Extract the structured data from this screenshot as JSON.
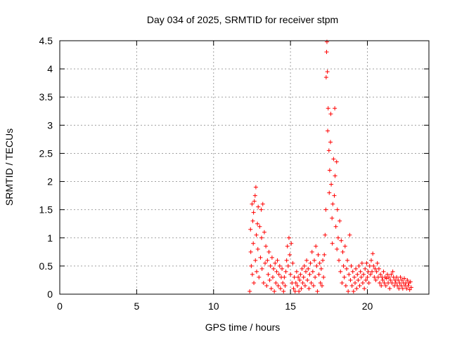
{
  "chart_data": {
    "type": "scatter",
    "title": "Day 034 of 2025, SRMTID for receiver stpm",
    "xlabel": "GPS time / hours",
    "ylabel": "SRMTID / TECUs",
    "xlim": [
      0,
      24
    ],
    "ylim": [
      0,
      4.5
    ],
    "xticks": [
      0,
      5,
      10,
      15,
      20
    ],
    "xtick_labels": [
      "0",
      "5",
      "10",
      "15",
      "20"
    ],
    "yticks": [
      0,
      0.5,
      1,
      1.5,
      2,
      2.5,
      3,
      3.5,
      4,
      4.5
    ],
    "ytick_labels": [
      "0",
      "0.5",
      "1",
      "1.5",
      "2",
      "2.5",
      "3",
      "3.5",
      "4",
      "4.5"
    ],
    "grid": true,
    "marker": "+",
    "series": [
      {
        "name": "SRMTID",
        "color": "#ff0000",
        "points": [
          [
            12.35,
            0.05
          ],
          [
            12.4,
            1.15
          ],
          [
            12.42,
            0.75
          ],
          [
            12.45,
            0.5
          ],
          [
            12.5,
            1.6
          ],
          [
            12.52,
            0.35
          ],
          [
            12.55,
            1.3
          ],
          [
            12.58,
            0.9
          ],
          [
            12.6,
            1.45
          ],
          [
            12.62,
            0.2
          ],
          [
            12.65,
            1.65
          ],
          [
            12.7,
            1.75
          ],
          [
            12.72,
            0.6
          ],
          [
            12.75,
            1.9
          ],
          [
            12.78,
            1.05
          ],
          [
            12.8,
            0.4
          ],
          [
            12.85,
            1.25
          ],
          [
            12.88,
            0.8
          ],
          [
            12.9,
            1.55
          ],
          [
            12.95,
            0.3
          ],
          [
            13.0,
            1.2
          ],
          [
            13.05,
            0.65
          ],
          [
            13.1,
            1.5
          ],
          [
            13.12,
            1.0
          ],
          [
            13.15,
            0.45
          ],
          [
            13.2,
            1.6
          ],
          [
            13.25,
            0.2
          ],
          [
            13.3,
            1.1
          ],
          [
            13.35,
            0.55
          ],
          [
            13.4,
            0.85
          ],
          [
            13.45,
            0.15
          ],
          [
            13.5,
            0.6
          ],
          [
            13.55,
            0.35
          ],
          [
            13.6,
            0.75
          ],
          [
            13.65,
            0.25
          ],
          [
            13.7,
            0.5
          ],
          [
            13.75,
            0.1
          ],
          [
            13.8,
            0.65
          ],
          [
            13.85,
            0.3
          ],
          [
            13.9,
            0.45
          ],
          [
            13.95,
            0.05
          ],
          [
            14.0,
            0.55
          ],
          [
            14.05,
            0.2
          ],
          [
            14.1,
            0.4
          ],
          [
            14.15,
            0.6
          ],
          [
            14.2,
            0.15
          ],
          [
            14.25,
            0.35
          ],
          [
            14.3,
            0.5
          ],
          [
            14.35,
            0.1
          ],
          [
            14.4,
            0.3
          ],
          [
            14.45,
            0.45
          ],
          [
            14.5,
            0.2
          ],
          [
            14.55,
            0.05
          ],
          [
            14.6,
            0.3
          ],
          [
            14.65,
            0.15
          ],
          [
            14.7,
            0.4
          ],
          [
            14.75,
            0.6
          ],
          [
            14.8,
            0.85
          ],
          [
            14.85,
            0.5
          ],
          [
            14.9,
            1.0
          ],
          [
            14.95,
            0.7
          ],
          [
            15.0,
            0.35
          ],
          [
            15.05,
            0.9
          ],
          [
            15.1,
            0.2
          ],
          [
            15.15,
            0.55
          ],
          [
            15.2,
            0.1
          ],
          [
            15.25,
            0.3
          ],
          [
            15.3,
            0.05
          ],
          [
            15.35,
            0.2
          ],
          [
            15.4,
            0.4
          ],
          [
            15.45,
            0.15
          ],
          [
            15.5,
            0.3
          ],
          [
            15.55,
            0.05
          ],
          [
            15.6,
            0.25
          ],
          [
            15.65,
            0.35
          ],
          [
            15.7,
            0.1
          ],
          [
            15.75,
            0.45
          ],
          [
            15.8,
            0.2
          ],
          [
            15.85,
            0.3
          ],
          [
            15.9,
            0.5
          ],
          [
            15.95,
            0.15
          ],
          [
            16.0,
            0.4
          ],
          [
            16.05,
            0.6
          ],
          [
            16.1,
            0.25
          ],
          [
            16.15,
            0.45
          ],
          [
            16.2,
            0.1
          ],
          [
            16.25,
            0.35
          ],
          [
            16.3,
            0.55
          ],
          [
            16.35,
            0.2
          ],
          [
            16.4,
            0.75
          ],
          [
            16.45,
            0.4
          ],
          [
            16.5,
            0.15
          ],
          [
            16.55,
            0.6
          ],
          [
            16.6,
            0.3
          ],
          [
            16.65,
            0.85
          ],
          [
            16.7,
            0.5
          ],
          [
            16.75,
            0.05
          ],
          [
            16.8,
            0.7
          ],
          [
            16.85,
            0.35
          ],
          [
            16.9,
            0.55
          ],
          [
            16.95,
            0.2
          ],
          [
            17.0,
            0.45
          ],
          [
            17.05,
            0.15
          ],
          [
            17.1,
            0.6
          ],
          [
            17.15,
            0.3
          ],
          [
            17.2,
            0.7
          ],
          [
            17.25,
            1.05
          ],
          [
            17.3,
            1.5
          ],
          [
            17.32,
            3.85
          ],
          [
            17.35,
            4.3
          ],
          [
            17.37,
            4.48
          ],
          [
            17.4,
            3.95
          ],
          [
            17.42,
            2.9
          ],
          [
            17.45,
            3.3
          ],
          [
            17.5,
            2.55
          ],
          [
            17.52,
            1.8
          ],
          [
            17.55,
            2.2
          ],
          [
            17.6,
            2.7
          ],
          [
            17.62,
            3.2
          ],
          [
            17.65,
            1.95
          ],
          [
            17.7,
            1.35
          ],
          [
            17.72,
            0.9
          ],
          [
            17.75,
            1.6
          ],
          [
            17.8,
            2.4
          ],
          [
            17.85,
            1.75
          ],
          [
            17.88,
            3.3
          ],
          [
            17.9,
            2.1
          ],
          [
            17.95,
            1.2
          ],
          [
            18.0,
            2.35
          ],
          [
            18.02,
            0.8
          ],
          [
            18.05,
            1.5
          ],
          [
            18.1,
            1.0
          ],
          [
            18.15,
            0.6
          ],
          [
            18.2,
            1.3
          ],
          [
            18.25,
            0.4
          ],
          [
            18.3,
            0.95
          ],
          [
            18.35,
            0.2
          ],
          [
            18.4,
            0.75
          ],
          [
            18.45,
            0.5
          ],
          [
            18.5,
            0.3
          ],
          [
            18.55,
            0.85
          ],
          [
            18.6,
            0.15
          ],
          [
            18.65,
            0.45
          ],
          [
            18.7,
            0.6
          ],
          [
            18.75,
            0.05
          ],
          [
            18.8,
            0.35
          ],
          [
            18.85,
            1.05
          ],
          [
            18.9,
            0.25
          ],
          [
            18.95,
            0.5
          ],
          [
            19.0,
            0.15
          ],
          [
            19.05,
            0.4
          ],
          [
            19.1,
            0.05
          ],
          [
            19.15,
            0.3
          ],
          [
            19.2,
            0.2
          ],
          [
            19.25,
            0.45
          ],
          [
            19.3,
            0.1
          ],
          [
            19.35,
            0.35
          ],
          [
            19.4,
            0.25
          ],
          [
            19.45,
            0.5
          ],
          [
            19.5,
            0.15
          ],
          [
            19.55,
            0.4
          ],
          [
            19.6,
            0.3
          ],
          [
            19.65,
            0.55
          ],
          [
            19.7,
            0.2
          ],
          [
            19.75,
            0.35
          ],
          [
            19.8,
            0.1
          ],
          [
            19.85,
            0.45
          ],
          [
            19.9,
            0.25
          ],
          [
            19.95,
            0.55
          ],
          [
            20.0,
            0.3
          ],
          [
            20.05,
            0.4
          ],
          [
            20.1,
            0.2
          ],
          [
            20.15,
            0.5
          ],
          [
            20.2,
            0.35
          ],
          [
            20.25,
            0.6
          ],
          [
            20.3,
            0.4
          ],
          [
            20.35,
            0.72
          ],
          [
            20.4,
            0.5
          ],
          [
            20.45,
            0.3
          ],
          [
            20.5,
            0.45
          ],
          [
            20.55,
            0.25
          ],
          [
            20.6,
            0.4
          ],
          [
            20.65,
            0.55
          ],
          [
            20.7,
            0.3
          ],
          [
            20.75,
            0.45
          ],
          [
            20.8,
            0.2
          ],
          [
            20.85,
            0.35
          ],
          [
            20.9,
            0.15
          ],
          [
            20.95,
            0.3
          ],
          [
            21.0,
            0.25
          ],
          [
            21.05,
            0.4
          ],
          [
            21.1,
            0.2
          ],
          [
            21.15,
            0.3
          ],
          [
            21.2,
            0.15
          ],
          [
            21.25,
            0.28
          ],
          [
            21.3,
            0.35
          ],
          [
            21.35,
            0.2
          ],
          [
            21.4,
            0.3
          ],
          [
            21.45,
            0.1
          ],
          [
            21.5,
            0.25
          ],
          [
            21.55,
            0.35
          ],
          [
            21.6,
            0.2
          ],
          [
            21.65,
            0.4
          ],
          [
            21.7,
            0.3
          ],
          [
            21.75,
            0.15
          ],
          [
            21.8,
            0.25
          ],
          [
            21.85,
            0.2
          ],
          [
            21.9,
            0.3
          ],
          [
            21.95,
            0.15
          ],
          [
            22.0,
            0.25
          ],
          [
            22.05,
            0.1
          ],
          [
            22.1,
            0.2
          ],
          [
            22.15,
            0.3
          ],
          [
            22.2,
            0.15
          ],
          [
            22.25,
            0.25
          ],
          [
            22.3,
            0.1
          ],
          [
            22.35,
            0.2
          ],
          [
            22.4,
            0.28
          ],
          [
            22.45,
            0.15
          ],
          [
            22.5,
            0.2
          ],
          [
            22.55,
            0.1
          ],
          [
            22.6,
            0.25
          ],
          [
            22.65,
            0.15
          ],
          [
            22.7,
            0.2
          ],
          [
            22.75,
            0.08
          ],
          [
            22.8,
            0.22
          ],
          [
            22.85,
            0.12
          ]
        ]
      }
    ]
  }
}
